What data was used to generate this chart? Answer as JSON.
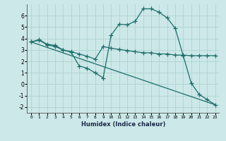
{
  "xlabel": "Humidex (Indice chaleur)",
  "background_color": "#cce8e8",
  "grid_color": "#aacfcf",
  "line_color": "#1a6e6a",
  "marker": "+",
  "linewidth": 0.9,
  "markersize": 4,
  "markeredgewidth": 0.9,
  "xlim": [
    -0.5,
    23.5
  ],
  "ylim": [
    -2.5,
    7.0
  ],
  "xticks": [
    0,
    1,
    2,
    3,
    4,
    5,
    6,
    7,
    8,
    9,
    10,
    11,
    12,
    13,
    14,
    15,
    16,
    17,
    18,
    19,
    20,
    21,
    22,
    23
  ],
  "yticks": [
    -2,
    -1,
    0,
    1,
    2,
    3,
    4,
    5,
    6
  ],
  "series1_x": [
    0,
    1,
    2,
    3,
    4,
    5,
    6,
    7,
    8,
    9,
    10,
    11,
    12,
    13,
    14,
    15,
    16,
    17,
    18,
    19,
    20,
    21,
    22,
    23
  ],
  "series1_y": [
    3.7,
    3.9,
    3.5,
    3.4,
    3.0,
    2.8,
    1.6,
    1.4,
    1.0,
    0.55,
    4.3,
    5.25,
    5.2,
    5.5,
    6.6,
    6.6,
    6.3,
    5.8,
    4.9,
    2.5,
    0.1,
    -0.9,
    -1.35,
    -1.8
  ],
  "series2_x": [
    0,
    1,
    2,
    3,
    4,
    5,
    6,
    7,
    8,
    9,
    10,
    11,
    12,
    13,
    14,
    15,
    16,
    17,
    18,
    19,
    20,
    21,
    22,
    23
  ],
  "series2_y": [
    3.7,
    3.85,
    3.45,
    3.3,
    3.0,
    2.85,
    2.65,
    2.45,
    2.2,
    3.3,
    3.15,
    3.05,
    2.95,
    2.85,
    2.75,
    2.75,
    2.65,
    2.65,
    2.55,
    2.55,
    2.5,
    2.5,
    2.5,
    2.5
  ],
  "series3_x": [
    0,
    23
  ],
  "series3_y": [
    3.7,
    -1.8
  ]
}
